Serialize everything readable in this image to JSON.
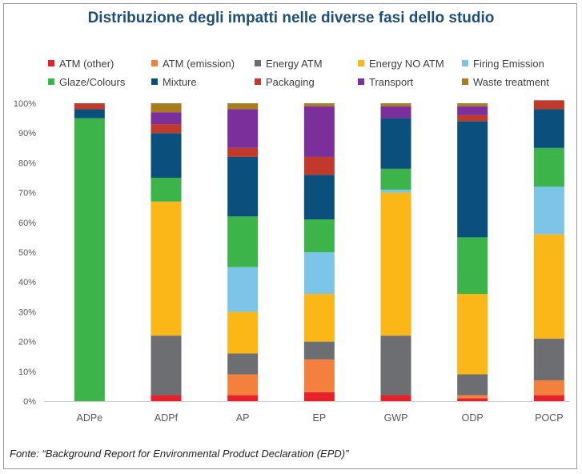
{
  "source": "Fonte: “Background Report for Environmental Product Declaration (EPD)”",
  "chart_data": {
    "type": "bar",
    "stacked": true,
    "title": "Distribuzione degli impatti nelle diverse fasi dello studio",
    "ylim": [
      0,
      100
    ],
    "yticks": [
      "0%",
      "10%",
      "20%",
      "30%",
      "40%",
      "50%",
      "60%",
      "70%",
      "80%",
      "90%",
      "100%"
    ],
    "categories": [
      "ADPe",
      "ADPf",
      "AP",
      "EP",
      "GWP",
      "ODP",
      "POCP"
    ],
    "legend_position": "top",
    "grid": false,
    "series": [
      {
        "name": "ATM (other)",
        "color": "#e8202a",
        "values": [
          0,
          2,
          2,
          3,
          2,
          1,
          2
        ]
      },
      {
        "name": "ATM (emission)",
        "color": "#f4803e",
        "values": [
          0,
          0,
          7,
          11,
          0,
          1,
          5
        ]
      },
      {
        "name": "Energy ATM",
        "color": "#6d6e71",
        "values": [
          0,
          20,
          7,
          6,
          20,
          7,
          14
        ]
      },
      {
        "name": "Energy NO ATM",
        "color": "#fbb617",
        "values": [
          0,
          45,
          14,
          16,
          48,
          27,
          35
        ]
      },
      {
        "name": "Firing Emission",
        "color": "#7cc4e8",
        "values": [
          0,
          0,
          15,
          14,
          1,
          0,
          16
        ]
      },
      {
        "name": "Glaze/Colours",
        "color": "#3cb44a",
        "values": [
          95,
          8,
          17,
          11,
          7,
          19,
          13
        ]
      },
      {
        "name": "Mixture",
        "color": "#0b4f7c",
        "values": [
          3,
          15,
          20,
          15,
          17,
          39,
          13
        ]
      },
      {
        "name": "Packaging",
        "color": "#c0392b",
        "values": [
          2,
          3,
          3,
          6,
          0,
          2,
          3
        ]
      },
      {
        "name": "Transport",
        "color": "#7b2f9a",
        "values": [
          0,
          4,
          13,
          17,
          4,
          3,
          0
        ]
      },
      {
        "name": "Waste treatment",
        "color": "#a67c1e",
        "values": [
          0,
          3,
          2,
          1,
          1,
          1,
          0
        ]
      }
    ]
  }
}
